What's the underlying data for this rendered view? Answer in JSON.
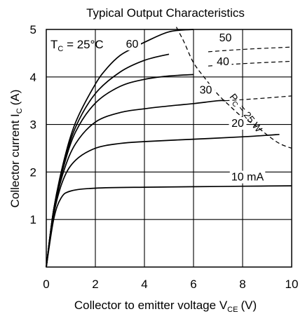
{
  "chart_data": {
    "type": "line",
    "title": "Typical Output Characteristics",
    "xlabel": "Collector to emitter voltage  V",
    "xlabel_sub": "CE",
    "xlabel_unit": "(V)",
    "ylabel": "Collector current  I",
    "ylabel_sub": "C",
    "ylabel_unit": "(A)",
    "xlim": [
      0,
      10
    ],
    "ylim": [
      0,
      5
    ],
    "xticks": [
      "0",
      "2",
      "4",
      "6",
      "8",
      "10"
    ],
    "yticks": [
      "1",
      "2",
      "3",
      "4",
      "5"
    ],
    "grid": true,
    "annotation": {
      "prefix": "T",
      "sub": "C",
      "suffix": " = 25°C"
    },
    "series": [
      {
        "name": "10 mA",
        "points": [
          [
            0,
            0
          ],
          [
            0.3,
            1.0
          ],
          [
            0.6,
            1.45
          ],
          [
            1.0,
            1.6
          ],
          [
            2,
            1.66
          ],
          [
            4,
            1.68
          ],
          [
            6,
            1.69
          ],
          [
            8,
            1.7
          ],
          [
            10,
            1.71
          ]
        ]
      },
      {
        "name": "20",
        "points": [
          [
            0,
            0
          ],
          [
            0.3,
            1.1
          ],
          [
            0.7,
            1.85
          ],
          [
            1.2,
            2.25
          ],
          [
            2,
            2.5
          ],
          [
            3,
            2.6
          ],
          [
            4,
            2.64
          ],
          [
            6,
            2.69
          ],
          [
            8,
            2.74
          ],
          [
            9.5,
            2.79
          ]
        ]
      },
      {
        "name": "30",
        "points": [
          [
            0,
            0
          ],
          [
            0.3,
            1.15
          ],
          [
            0.7,
            2.0
          ],
          [
            1.2,
            2.6
          ],
          [
            2,
            3.05
          ],
          [
            3,
            3.25
          ],
          [
            4,
            3.33
          ],
          [
            5,
            3.39
          ],
          [
            6,
            3.44
          ],
          [
            7,
            3.5
          ],
          [
            7.3,
            3.5
          ]
        ]
      },
      {
        "name": "40",
        "points": [
          [
            0,
            0
          ],
          [
            0.3,
            1.2
          ],
          [
            0.7,
            2.1
          ],
          [
            1.2,
            2.85
          ],
          [
            2,
            3.45
          ],
          [
            3,
            3.8
          ],
          [
            4,
            3.95
          ],
          [
            5,
            4.02
          ],
          [
            6,
            4.05
          ]
        ]
      },
      {
        "name": "50",
        "points": [
          [
            0,
            0
          ],
          [
            0.3,
            1.2
          ],
          [
            0.7,
            2.15
          ],
          [
            1.2,
            2.95
          ],
          [
            2,
            3.65
          ],
          [
            3,
            4.1
          ],
          [
            4,
            4.35
          ],
          [
            5,
            4.48
          ]
        ]
      },
      {
        "name": "60",
        "points": [
          [
            0,
            0
          ],
          [
            0.3,
            1.2
          ],
          [
            0.7,
            2.2
          ],
          [
            1.2,
            3.05
          ],
          [
            2,
            3.85
          ],
          [
            2.5,
            4.2
          ],
          [
            3,
            4.45
          ],
          [
            3.5,
            4.6
          ],
          [
            4,
            4.73
          ],
          [
            5,
            4.95
          ],
          [
            6,
            5.0
          ]
        ]
      }
    ],
    "dashed_extensions": [
      [
        [
          6.6,
          4.53
        ],
        [
          8,
          4.58
        ],
        [
          10,
          4.63
        ]
      ],
      [
        [
          6.6,
          4.23
        ],
        [
          8,
          4.28
        ],
        [
          10,
          4.33
        ]
      ],
      [
        [
          7.3,
          3.5
        ],
        [
          8.5,
          3.54
        ],
        [
          10,
          3.6
        ]
      ]
    ],
    "power_curve": {
      "label": "P",
      "label_sub": "C",
      "label_suffix": " = 25 W",
      "points": [
        [
          5.3,
          5.05
        ],
        [
          5.6,
          4.75
        ],
        [
          6.0,
          4.3
        ],
        [
          6.5,
          3.95
        ],
        [
          7.0,
          3.63
        ],
        [
          7.5,
          3.38
        ],
        [
          8.0,
          3.15
        ],
        [
          8.5,
          2.99
        ],
        [
          9.0,
          2.78
        ],
        [
          9.5,
          2.6
        ],
        [
          10,
          2.5
        ]
      ]
    },
    "labels": [
      {
        "text": "60",
        "x": 3.5,
        "y": 4.62
      },
      {
        "text": "50",
        "x": 7.3,
        "y": 4.75
      },
      {
        "text": "40",
        "x": 7.2,
        "y": 4.25
      },
      {
        "text": "30",
        "x": 6.5,
        "y": 3.65
      },
      {
        "text": "20",
        "x": 7.8,
        "y": 2.95
      },
      {
        "text": "10 mA",
        "x": 8.2,
        "y": 1.82
      }
    ]
  }
}
